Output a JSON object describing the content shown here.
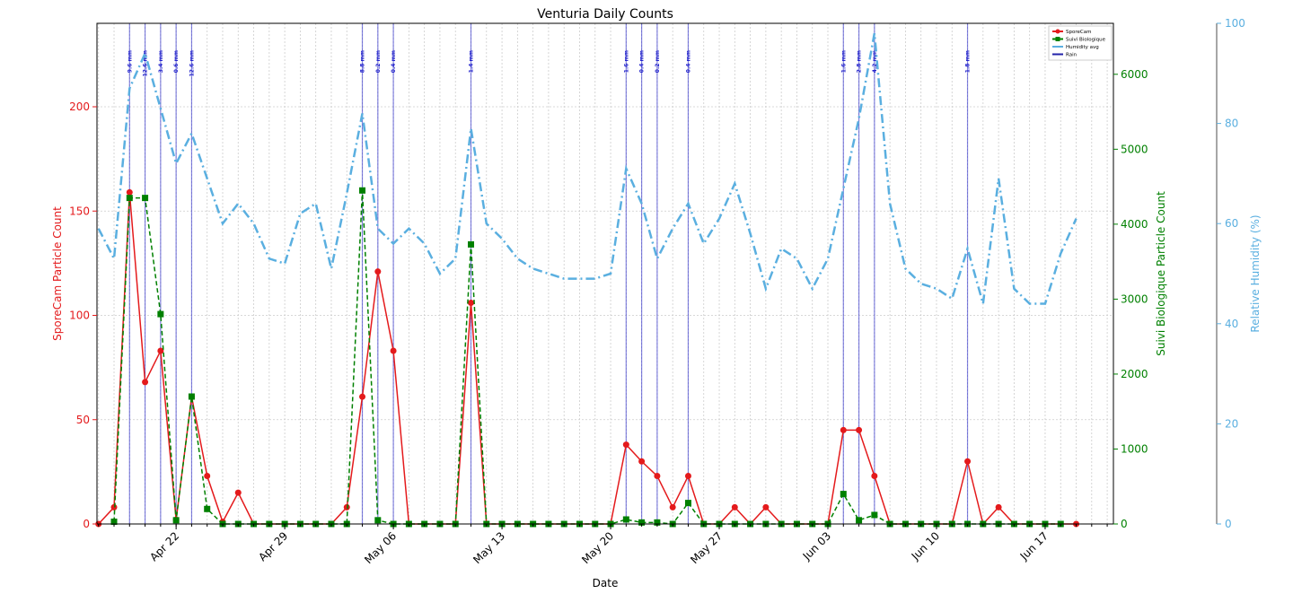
{
  "chart_data": {
    "type": "line",
    "title": "Venturia Daily Counts",
    "xlabel": "Date",
    "ylabel_left": "SporeCam Particle Count",
    "ylabel_right": "Suivi Biologique Particle Count",
    "ylabel_humidity": "Relative Humidity (%)",
    "start_date": "Apr 17",
    "xlim_days": [
      -0.1,
      65.4
    ],
    "ylim_left": [
      0,
      240
    ],
    "ylim_right": [
      0,
      6680
    ],
    "ylim_humidity": [
      0,
      100
    ],
    "grid": true,
    "legend_position": "top-right",
    "x_ticks": [
      {
        "day": 5,
        "label": "Apr 22"
      },
      {
        "day": 12,
        "label": "Apr 29"
      },
      {
        "day": 19,
        "label": "May 06"
      },
      {
        "day": 26,
        "label": "May 13"
      },
      {
        "day": 33,
        "label": "May 20"
      },
      {
        "day": 40,
        "label": "May 27"
      },
      {
        "day": 47,
        "label": "Jun 03"
      },
      {
        "day": 54,
        "label": "Jun 10"
      },
      {
        "day": 61,
        "label": "Jun 17"
      }
    ],
    "y_ticks_left": [
      0,
      50,
      100,
      150,
      200
    ],
    "y_ticks_right": [
      0,
      1000,
      2000,
      3000,
      4000,
      5000,
      6000
    ],
    "y_ticks_humidity": [
      0,
      20,
      40,
      60,
      80,
      100
    ],
    "series": [
      {
        "name": "SporeCam",
        "color": "#e41a1c",
        "axis": "left",
        "days": [
          0,
          1,
          2,
          3,
          4,
          5,
          6,
          7,
          8,
          9,
          10,
          11,
          12,
          13,
          14,
          15,
          16,
          17,
          18,
          19,
          20,
          21,
          22,
          23,
          24,
          25,
          26,
          27,
          28,
          29,
          30,
          31,
          32,
          33,
          34,
          35,
          36,
          37,
          38,
          39,
          40,
          41,
          42,
          43,
          44,
          45,
          46,
          47,
          48,
          49,
          50,
          51,
          52,
          53,
          54,
          55,
          56,
          57,
          58,
          59,
          63
        ],
        "values": [
          0,
          8,
          159,
          68,
          83,
          2,
          61,
          23,
          1,
          15,
          0,
          0,
          0,
          0,
          0,
          0,
          8,
          61,
          121,
          83,
          0,
          0,
          0,
          0,
          106,
          0,
          0,
          0,
          0,
          0,
          0,
          0,
          0,
          0,
          38,
          30,
          23,
          8,
          23,
          0,
          0,
          8,
          0,
          8,
          0,
          0,
          0,
          0,
          45,
          45,
          23,
          0,
          0,
          0,
          0,
          0,
          30,
          0,
          8,
          0,
          0
        ]
      },
      {
        "name": "Suivi Biologique",
        "color": "#008000",
        "axis": "right",
        "days": [
          1,
          2,
          3,
          4,
          5,
          6,
          7,
          8,
          9,
          10,
          11,
          12,
          13,
          14,
          15,
          16,
          17,
          18,
          19,
          20,
          21,
          22,
          23,
          24,
          25,
          26,
          27,
          28,
          29,
          30,
          31,
          32,
          33,
          34,
          35,
          36,
          37,
          38,
          39,
          40,
          41,
          42,
          43,
          44,
          45,
          46,
          47,
          48,
          49,
          50,
          51,
          52,
          53,
          54,
          55,
          56,
          57,
          58,
          59,
          60,
          61,
          62
        ],
        "values": [
          30,
          4350,
          4350,
          2800,
          50,
          1700,
          200,
          0,
          0,
          0,
          0,
          0,
          0,
          0,
          0,
          0,
          4450,
          50,
          0,
          0,
          0,
          0,
          0,
          3730,
          0,
          0,
          0,
          0,
          0,
          0,
          0,
          0,
          0,
          60,
          20,
          20,
          0,
          280,
          0,
          0,
          0,
          0,
          0,
          0,
          0,
          0,
          0,
          400,
          50,
          120,
          0,
          0,
          0,
          0,
          0,
          0,
          0,
          0,
          0,
          0,
          0,
          0
        ]
      },
      {
        "name": "Humidity avg",
        "color": "#5aafe0",
        "axis": "humidity",
        "days": [
          0,
          1,
          2,
          3,
          4,
          5,
          6,
          7,
          8,
          9,
          10,
          11,
          12,
          13,
          14,
          15,
          16,
          17,
          18,
          19,
          20,
          21,
          22,
          23,
          24,
          25,
          26,
          27,
          28,
          29,
          30,
          31,
          32,
          33,
          34,
          35,
          36,
          37,
          38,
          39,
          40,
          41,
          42,
          43,
          44,
          45,
          46,
          47,
          48,
          49,
          50,
          51,
          52,
          53,
          54,
          55,
          56,
          57,
          58,
          59,
          60,
          61,
          62,
          63
        ],
        "values": [
          59,
          53,
          87,
          94,
          83,
          72,
          78,
          69,
          60,
          64,
          60,
          53,
          52,
          62,
          64,
          51,
          66,
          82,
          59,
          56,
          59,
          56,
          50,
          53,
          79,
          60,
          57,
          53,
          51,
          50,
          49,
          49,
          49,
          50,
          71,
          64,
          53,
          59,
          64,
          56,
          61,
          68,
          58,
          47,
          55,
          53,
          47,
          53,
          67,
          81,
          98,
          64,
          51,
          48,
          47,
          45,
          55,
          44,
          69,
          47,
          44,
          44,
          54,
          61
        ]
      }
    ],
    "rain": {
      "name": "Rain",
      "color": "#3333cc",
      "events": [
        {
          "day": 2,
          "label": "9.6 mm"
        },
        {
          "day": 3,
          "label": "12.6 mm"
        },
        {
          "day": 4,
          "label": "3.4 mm"
        },
        {
          "day": 5,
          "label": "0.6 mm"
        },
        {
          "day": 6,
          "label": "12.6 mm"
        },
        {
          "day": 17,
          "label": "8.8 mm"
        },
        {
          "day": 18,
          "label": "0.2 mm"
        },
        {
          "day": 19,
          "label": "0.4 mm"
        },
        {
          "day": 24,
          "label": "1.4 mm"
        },
        {
          "day": 34,
          "label": "1.6 mm"
        },
        {
          "day": 35,
          "label": "0.4 mm"
        },
        {
          "day": 36,
          "label": "0.2 mm"
        },
        {
          "day": 38,
          "label": "0.4 mm"
        },
        {
          "day": 48,
          "label": "1.6 mm"
        },
        {
          "day": 49,
          "label": "2.8 mm"
        },
        {
          "day": 50,
          "label": "4.2 mm"
        },
        {
          "day": 56,
          "label": "1.8 mm"
        }
      ]
    }
  }
}
